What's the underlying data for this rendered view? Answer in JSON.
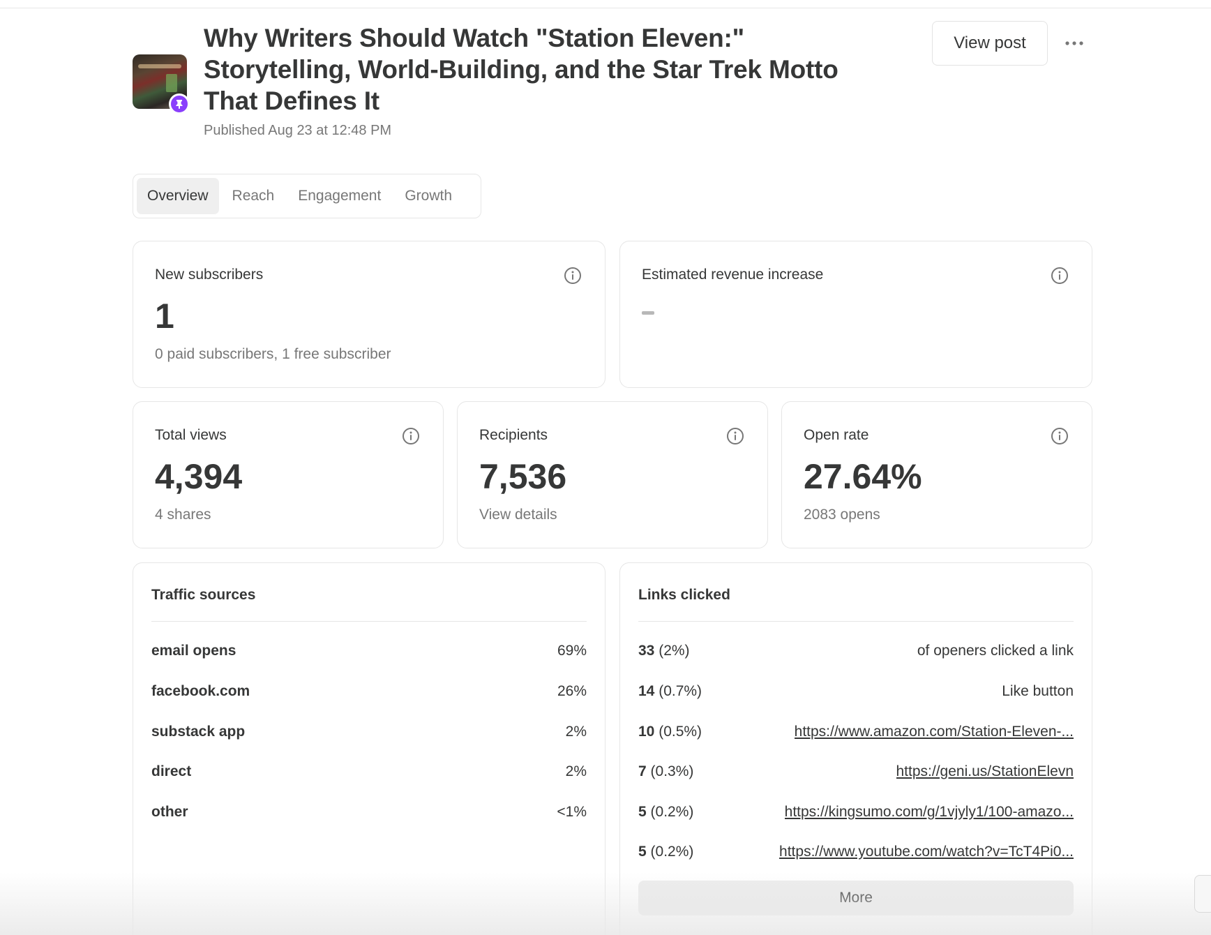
{
  "header": {
    "title": "Why Writers Should Watch \"Station Eleven:\" Storytelling, World-Building, and the Star Trek Motto That Defines It",
    "published": "Published Aug 23 at 12:48 PM",
    "view_post_label": "View post",
    "more_icon": "more-horizontal-icon",
    "pin_icon": "pin-icon",
    "accent_color": "#8a3ffc"
  },
  "tabs": [
    {
      "label": "Overview",
      "active": true
    },
    {
      "label": "Reach",
      "active": false
    },
    {
      "label": "Engagement",
      "active": false
    },
    {
      "label": "Growth",
      "active": false
    }
  ],
  "stats": {
    "new_subscribers": {
      "label": "New subscribers",
      "value": "1",
      "sub": "0 paid subscribers, 1 free subscriber"
    },
    "revenue": {
      "label": "Estimated revenue increase",
      "value": "-"
    },
    "total_views": {
      "label": "Total views",
      "value": "4,394",
      "sub": "4 shares"
    },
    "recipients": {
      "label": "Recipients",
      "value": "7,536",
      "sub": "View details"
    },
    "open_rate": {
      "label": "Open rate",
      "value": "27.64%",
      "sub": "2083 opens"
    }
  },
  "traffic": {
    "title": "Traffic sources",
    "rows": [
      {
        "source": "email opens",
        "pct": "69%"
      },
      {
        "source": "facebook.com",
        "pct": "26%"
      },
      {
        "source": "substack app",
        "pct": "2%"
      },
      {
        "source": "direct",
        "pct": "2%"
      },
      {
        "source": "other",
        "pct": "<1%"
      }
    ]
  },
  "links": {
    "title": "Links clicked",
    "rows": [
      {
        "count": "33",
        "pct": "(2%)",
        "target": "of openers clicked a link",
        "is_link": false
      },
      {
        "count": "14",
        "pct": "(0.7%)",
        "target": "Like button",
        "is_link": false
      },
      {
        "count": "10",
        "pct": "(0.5%)",
        "target": "https://www.amazon.com/Station-Eleven-...",
        "is_link": true
      },
      {
        "count": "7",
        "pct": "(0.3%)",
        "target": "https://geni.us/StationElevn",
        "is_link": true
      },
      {
        "count": "5",
        "pct": "(0.2%)",
        "target": "https://kingsumo.com/g/1vjyly1/100-amazo...",
        "is_link": true
      },
      {
        "count": "5",
        "pct": "(0.2%)",
        "target": "https://www.youtube.com/watch?v=TcT4Pi0...",
        "is_link": true
      }
    ],
    "more_label": "More"
  }
}
